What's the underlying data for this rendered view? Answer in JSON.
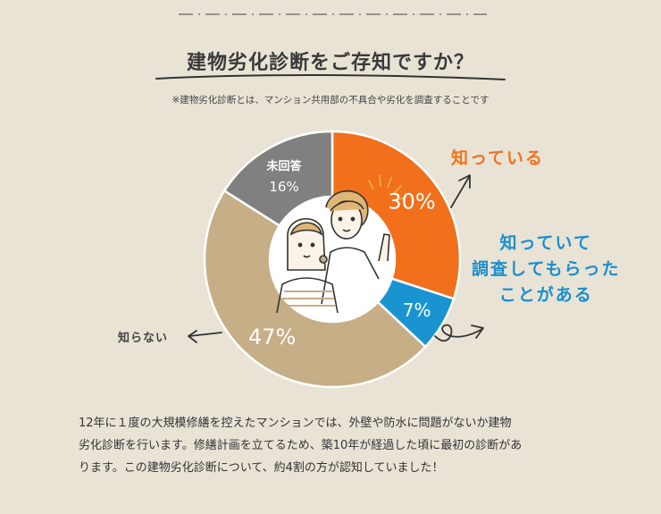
{
  "title": "建物劣化診断をご存知ですか？",
  "note": "※建物劣化診断とは、マンション共用部の不具合や劣化を調査することです",
  "chart_data": {
    "type": "pie",
    "donut": true,
    "slices": [
      {
        "label": "知っている",
        "value": 30,
        "display": "30%",
        "color": "#f26f1c"
      },
      {
        "label": "知っていて調査してもらったことがある",
        "value": 7,
        "display": "7%",
        "color": "#1a94d1"
      },
      {
        "label": "知らない",
        "value": 47,
        "display": "47%",
        "color": "#c6ae86"
      },
      {
        "label": "未回答",
        "value": 16,
        "display": "16%",
        "color": "#808080"
      }
    ],
    "unanswered_label": "未回答",
    "unanswered_value": "16%"
  },
  "callouts": {
    "know": "知っている",
    "checked": [
      "知っていて",
      "調査してもらった",
      "ことがある"
    ],
    "dont_know": "知らない"
  },
  "body_text": [
    "12年に１度の大規模修繕を控えたマンションでは、外壁や防水に問題がないか建物",
    "劣化診断を行います。修繕計画を立てるため、築10年が経過した頃に最初の診断があ",
    "ります。この建物劣化診断について、約4割の方が認知していました！"
  ],
  "colors": {
    "background": "#e9e3d6",
    "accent_orange": "#f26f1c",
    "accent_blue": "#1a94d1"
  }
}
